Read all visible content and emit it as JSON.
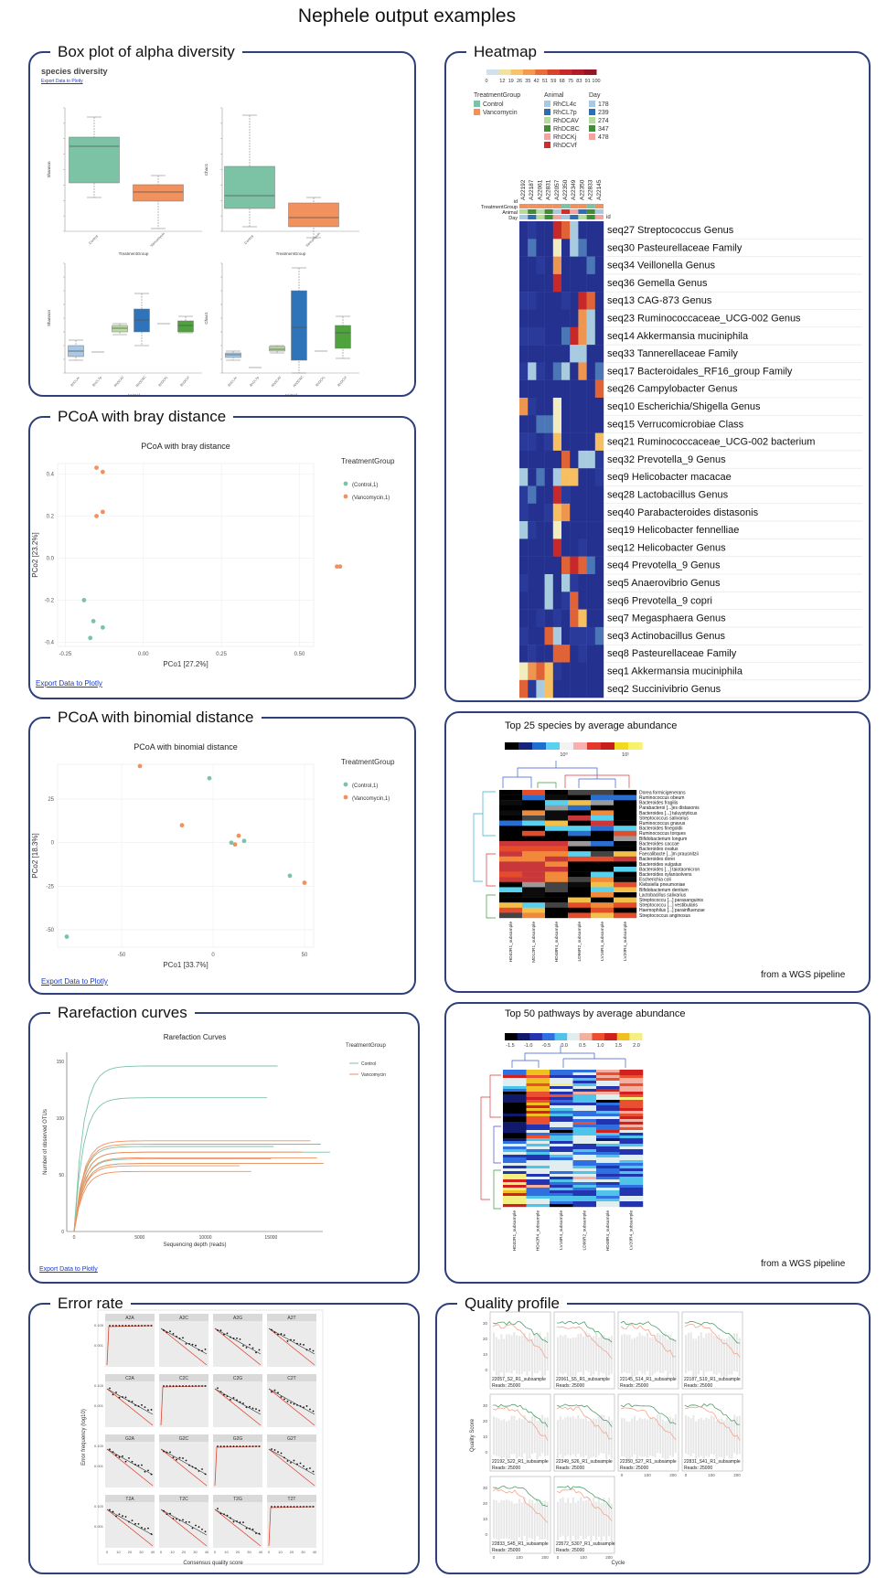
{
  "page": {
    "title": "Nephele output examples"
  },
  "panels": {
    "boxplot": {
      "title": "Box plot of alpha diversity",
      "subtitle": "species diversity",
      "export": "Export Data to Plotly",
      "y1": "Shannon",
      "y2": "Chao1",
      "x1": "TreatmentGroup",
      "x2": "Animal",
      "cats1": [
        "Control",
        "Vancomycin"
      ],
      "cats2": [
        "RhCL4c",
        "RhCL7p",
        "RhDCAV",
        "RhDCBC",
        "RhDCKj",
        "RhDCVf"
      ]
    },
    "pcoa_bray": {
      "title": "PCoA with bray distance",
      "plot_title": "PCoA with bray distance",
      "legend_title": "TreatmentGroup",
      "legend": [
        "(Control,1)",
        "(Vancomycin,1)"
      ],
      "xlabel": "PCo1 [27.2%]",
      "ylabel": "PCo2 [23.2%]",
      "export": "Export Data to Plotly",
      "xticks": [
        "-0.25",
        "0.00",
        "0.25",
        "0.50"
      ],
      "yticks": [
        "0.4",
        "0.2",
        "0.0",
        "-0.2",
        "-0.4"
      ]
    },
    "pcoa_binomial": {
      "title": "PCoA with binomial distance",
      "plot_title": "PCoA with binomial distance",
      "legend_title": "TreatmentGroup",
      "legend": [
        "(Control,1)",
        "(Vancomycin,1)"
      ],
      "xlabel": "PCo1 [33.7%]",
      "ylabel": "PCo2 [18.3%]",
      "export": "Export Data to Plotly",
      "xticks": [
        "-50",
        "0",
        "50"
      ],
      "yticks": [
        "25",
        "0",
        "-25",
        "-50"
      ]
    },
    "rarefaction": {
      "title": "Rarefaction curves",
      "plot_title": "Rarefaction Curves",
      "legend_title": "TreatmentGroup",
      "legend": [
        "Control",
        "Vancomycin"
      ],
      "xlabel": "Sequencing depth (reads)",
      "ylabel": "Number of observed OTUs",
      "export": "Export Data to Plotly",
      "xticks": [
        "0",
        "5000",
        "10000",
        "15000"
      ],
      "yticks": [
        "150",
        "100",
        "50",
        "0"
      ]
    },
    "error_rate": {
      "title": "Error rate",
      "xlabel": "Consensus quality score",
      "ylabel": "Error frequency (log10)",
      "facets": [
        "A2A",
        "A2C",
        "A2G",
        "A2T",
        "C2A",
        "C2C",
        "C2G",
        "C2T",
        "G2A",
        "G2C",
        "G2G",
        "G2T",
        "T2A",
        "T2C",
        "T2G",
        "T2T"
      ]
    },
    "heatmap": {
      "title": "Heatmap",
      "scale": [
        "0",
        "12",
        "19",
        "26",
        "35",
        "42",
        "51",
        "59",
        "68",
        "75",
        "83",
        "91",
        "100"
      ],
      "legend_tg_title": "TreatmentGroup",
      "legend_tg": [
        "Control",
        "Vancomycin"
      ],
      "legend_animal_title": "Animal",
      "legend_animal": [
        "RhCL4c",
        "RhCL7p",
        "RhDCAV",
        "RhDCBC",
        "RhDCKj",
        "RhDCVf"
      ],
      "legend_day_title": "Day",
      "legend_day": [
        "178",
        "239",
        "274",
        "347",
        "478"
      ],
      "annot_labels": [
        "id",
        "TreatmentGroup",
        "Animal",
        "Day"
      ],
      "id_label": "id",
      "col_ids": [
        "A22192",
        "A22187",
        "A22061",
        "A22831",
        "A22057",
        "A22350",
        "A22349",
        "A22350",
        "A22833",
        "A22145"
      ],
      "rows": [
        "seq27 Streptococcus Genus",
        "seq30 Pasteurellaceae Family",
        "seq34 Veillonella Genus",
        "seq36 Gemella Genus",
        "seq13 CAG-873 Genus",
        "seq23 Ruminococcaceae_UCG-002 Genus",
        "seq14 Akkermansia muciniphila",
        "seq33 Tannerellaceae Family",
        "seq17 Bacteroidales_RF16_group Family",
        "seq26 Campylobacter Genus",
        "seq10 Escherichia/Shigella Genus",
        "seq15 Verrucomicrobiae Class",
        "seq21 Ruminococcaceae_UCG-002 bacterium",
        "seq32 Prevotella_9 Genus",
        "seq9 Helicobacter macacae",
        "seq28 Lactobacillus Genus",
        "seq40 Parabacteroides distasonis",
        "seq19 Helicobacter fennelliae",
        "seq12 Helicobacter Genus",
        "seq4 Prevotella_9 Genus",
        "seq5 Anaerovibrio Genus",
        "seq6 Prevotella_9 copri",
        "seq7 Megasphaera Genus",
        "seq3 Actinobacillus Genus",
        "seq8 Pasteurellaceae Family",
        "seq1 Akkermansia muciniphila",
        "seq2 Succinivibrio Genus"
      ]
    },
    "species": {
      "title": "Top 25 species by average abundance",
      "note": "from a WGS pipeline",
      "scale": [
        "10⁰",
        "10¹"
      ],
      "cols": [
        "HD32R1_subsample",
        "MD12R1_subsample",
        "HD48R4_subsample",
        "LD96R2_subsample",
        "LV16R4_subsample",
        "LV20R4_subsample"
      ],
      "rows": [
        "Dorea formicigenerans",
        "Ruminococcus obeum",
        "Bacteroides fragilis",
        "Parabacteroi [...]es distasonis",
        "Bacteroides [...] tuluystyticus",
        "Streptococcus salivarius",
        "Ruminococcus gnavus",
        "Bacteroides finegoldii",
        "Ruminococcus torques",
        "Bifidobacterium longum",
        "Bacteroides caccae",
        "Bacteroides ovatus",
        "Faecalibacte [...]m prausnitzii",
        "Bacteroides dorei",
        "Bacteroides vulgatus",
        "Bacteroides [...] taiotaomicron",
        "Bacteroides xylanisolvens",
        "Escherichia coli",
        "Klebsiella pneumoniae",
        "Bifidobacterium dentium",
        "Lactobacillus salivarius",
        "Streptococcu [...] parasanguinis",
        "Streptococcu [...] vestibularis",
        "Haemophilus [...] parainfluenzae",
        "Streptococcus anginosus"
      ]
    },
    "pathways": {
      "title": "Top 50 pathways by average abundance",
      "note": "from a WGS pipeline",
      "scale": [
        "-1.5",
        "-1.0",
        "-0.5",
        "0.0",
        "0.5",
        "1.0",
        "1.5",
        "2.0"
      ],
      "cols": [
        "HD32R1_subsample",
        "HD42R4_subsample",
        "LV16R4_subsample",
        "LD96R2_subsample",
        "HD48R4_subsample",
        "LV20R4_subsample"
      ]
    },
    "quality": {
      "title": "Quality profile",
      "ylabel": "Quality Score",
      "xlabel": "Cycle",
      "samples": [
        {
          "name": "22057_S2_R1_subsample",
          "reads": "Reads: 25000"
        },
        {
          "name": "22061_S5_R1_subsample",
          "reads": "Reads: 25000"
        },
        {
          "name": "22145_S14_R1_subsample",
          "reads": "Reads: 25000"
        },
        {
          "name": "22187_S19_R1_subsample",
          "reads": "Reads: 25000"
        },
        {
          "name": "22192_S22_R1_subsample",
          "reads": "Reads: 25000"
        },
        {
          "name": "22349_S26_R1_subsample",
          "reads": "Reads: 25000"
        },
        {
          "name": "22350_S27_R1_subsample",
          "reads": "Reads: 25000"
        },
        {
          "name": "22831_S41_R1_subsample",
          "reads": "Reads: 25000"
        },
        {
          "name": "22833_S45_R1_subsample",
          "reads": "Reads: 25000"
        },
        {
          "name": "23572_S307_R1_subsample",
          "reads": "Reads: 25000"
        }
      ]
    }
  },
  "colors": {
    "control": "#7cc3a6",
    "vancomycin": "#f0915e",
    "border": "#2f3f7a",
    "link": "#1a3cc9"
  }
}
